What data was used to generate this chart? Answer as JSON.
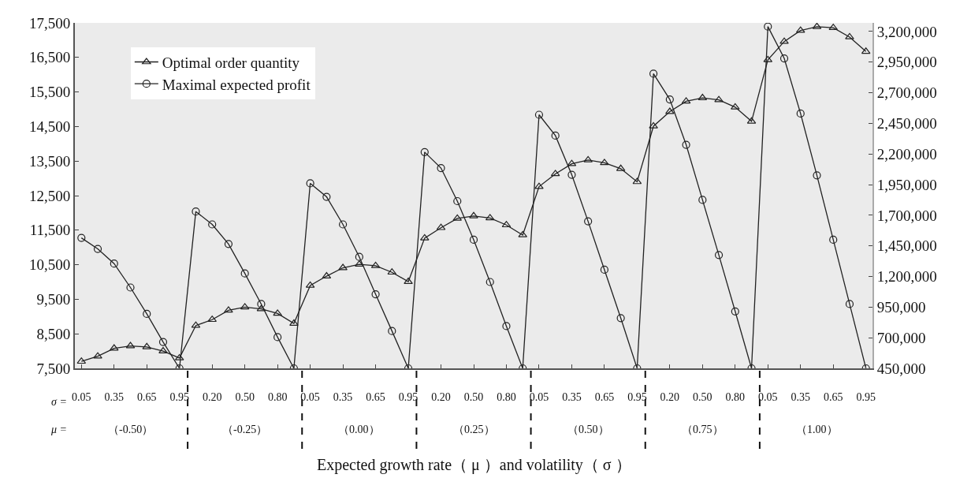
{
  "chart_data": {
    "type": "line",
    "xlabel": "Expected growth rate（ μ ）and volatility（ σ ）",
    "categories": [
      "0.05",
      null,
      "0.35",
      null,
      "0.65",
      null,
      "0.95",
      null,
      "0.20",
      null,
      "0.50",
      null,
      "0.80",
      null,
      "0.05",
      null,
      "0.35",
      null,
      "0.65",
      null,
      "0.95",
      null,
      "0.20",
      null,
      "0.50",
      null,
      "0.80",
      null,
      "0.05",
      null,
      "0.35",
      null,
      "0.65",
      null,
      "0.95",
      null,
      "0.20",
      null,
      "0.50",
      null,
      "0.80",
      null,
      "0.05",
      null,
      "0.35",
      null,
      "0.65",
      null,
      "0.95"
    ],
    "annotations": [
      "σ =",
      "μ =",
      "（-0.50）",
      "（-0.25）",
      "（0.00）",
      "（0.25）",
      "（0.50）",
      "（0.75）",
      "（1.00）"
    ],
    "series": [
      {
        "name": "Optimal order quantity",
        "color": "#222222",
        "marker": "triangle",
        "values": [
          7700,
          7850,
          8080,
          8150,
          8120,
          8000,
          7800,
          8740,
          8910,
          9180,
          9270,
          9220,
          9090,
          8800,
          9900,
          10170,
          10410,
          10510,
          10470,
          10280,
          10010,
          11270,
          11570,
          11840,
          11910,
          11850,
          11650,
          11360,
          12760,
          13130,
          13420,
          13530,
          13450,
          13280,
          12900,
          14510,
          14930,
          15230,
          15330,
          15270,
          15060,
          14650,
          16430,
          16960,
          17280,
          17390,
          17360,
          17090,
          16670
        ]
      },
      {
        "name": "Maximal expected profit",
        "color": "#222222",
        "marker": "circle",
        "axis": "y2",
        "values": [
          1515000,
          1425000,
          1305000,
          1110000,
          895000,
          665000,
          450000,
          1730000,
          1625000,
          1465000,
          1225000,
          975000,
          705000,
          450000,
          1960000,
          1850000,
          1625000,
          1360000,
          1055000,
          755000,
          450000,
          2215000,
          2085000,
          1815000,
          1500000,
          1155000,
          795000,
          450000,
          2520000,
          2350000,
          2030000,
          1650000,
          1255000,
          860000,
          450000,
          2855000,
          2645000,
          2275000,
          1825000,
          1375000,
          915000,
          450000,
          3240000,
          2980000,
          2530000,
          2025000,
          1500000,
          975000,
          450000
        ]
      }
    ],
    "ylim": [
      7500,
      17500
    ],
    "yticks": [
      {
        "value": 7500,
        "label": "7,500"
      },
      {
        "value": 8500,
        "label": "8,500"
      },
      {
        "value": 9500,
        "label": "9,500"
      },
      {
        "value": 10500,
        "label": "10,500"
      },
      {
        "value": 11500,
        "label": "11,500"
      },
      {
        "value": 12500,
        "label": "12,500"
      },
      {
        "value": 13500,
        "label": "13,500"
      },
      {
        "value": 14500,
        "label": "14,500"
      },
      {
        "value": 15500,
        "label": "15,500"
      },
      {
        "value": 16500,
        "label": "16,500"
      },
      {
        "value": 17500,
        "label": "17,500"
      }
    ],
    "y2lim": [
      450000,
      3270000
    ],
    "y2ticks": [
      {
        "value": 450000,
        "label": "450,000"
      },
      {
        "value": 700000,
        "label": "700,000"
      },
      {
        "value": 950000,
        "label": "950,000"
      },
      {
        "value": 1200000,
        "label": "1,200,000"
      },
      {
        "value": 1450000,
        "label": "1,450,000"
      },
      {
        "value": 1700000,
        "label": "1,700,000"
      },
      {
        "value": 1950000,
        "label": "1,950,000"
      },
      {
        "value": 2200000,
        "label": "2,200,000"
      },
      {
        "value": 2450000,
        "label": "2,450,000"
      },
      {
        "value": 2700000,
        "label": "2,700,000"
      },
      {
        "value": 2950000,
        "label": "2,950,000"
      },
      {
        "value": 3200000,
        "label": "3,200,000"
      }
    ],
    "grid": false,
    "legend": "top left",
    "line_style": "solid"
  }
}
